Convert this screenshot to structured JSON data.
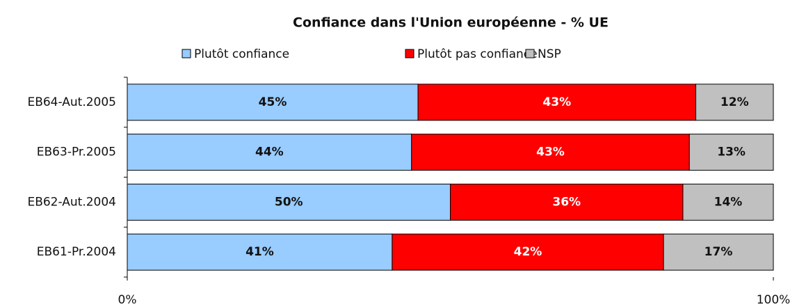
{
  "chart_data": {
    "type": "stacked_barh",
    "title": "Confiance dans l'Union européenne - % UE",
    "categories": [
      "EB64-Aut.2005",
      "EB63-Pr.2005",
      "EB62-Aut.2004",
      "EB61-Pr.2004"
    ],
    "series": [
      {
        "name": "Plutôt confiance",
        "color": "#99ccff",
        "label_color": "#111111",
        "values": [
          45,
          44,
          50,
          41
        ],
        "value_labels": [
          "45%",
          "44%",
          "50%",
          "41%"
        ]
      },
      {
        "name": "Plutôt pas confiance",
        "color": "#ff0000",
        "label_color": "#ffffff",
        "values": [
          43,
          43,
          36,
          42
        ],
        "value_labels": [
          "43%",
          "43%",
          "36%",
          "42%"
        ]
      },
      {
        "name": "NSP",
        "color": "#c0c0c0",
        "label_color": "#111111",
        "values": [
          12,
          13,
          14,
          17
        ],
        "value_labels": [
          "12%",
          "13%",
          "14%",
          "17%"
        ]
      }
    ],
    "xlim": [
      0,
      100
    ],
    "xticks": [
      {
        "value": 0,
        "label": "0%"
      },
      {
        "value": 100,
        "label": "100%"
      }
    ],
    "legend": "top"
  }
}
